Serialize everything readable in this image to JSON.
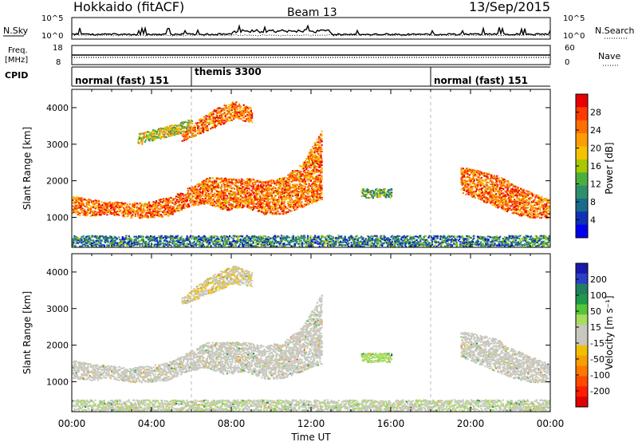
{
  "header": {
    "station": "Hokkaido (fitACF)",
    "beam": "Beam 13",
    "date": "13/Sep/2015"
  },
  "nsky_panel": {
    "left_label": "N.Sky",
    "right_label": "N.Search",
    "left_ticks": [
      "10^5",
      "10^0"
    ],
    "right_ticks": [
      "10^5",
      "10^0"
    ]
  },
  "freq_panel": {
    "left_label_1": "Freq.",
    "left_label_2": "[MHz]",
    "left_ticks": [
      "18",
      "8"
    ],
    "right_ticks": [
      "60",
      "0"
    ],
    "right_label": "Nave"
  },
  "cpid_panel": {
    "label": "CPID",
    "segments": [
      {
        "name": "normal (fast) 151",
        "start_hour": 0,
        "end_hour": 6
      },
      {
        "name": "themis 3300",
        "start_hour": 6,
        "end_hour": 18
      },
      {
        "name": "normal (fast) 151",
        "start_hour": 18,
        "end_hour": 24
      }
    ]
  },
  "x_axis": {
    "title": "Time UT",
    "ticks": [
      "00:00",
      "04:00",
      "08:00",
      "12:00",
      "16:00",
      "20:00",
      "00:00"
    ],
    "tick_hours": [
      0,
      4,
      8,
      12,
      16,
      20,
      24
    ]
  },
  "power_colorbar": {
    "title": "Power [dB]",
    "ticks": [
      "28",
      "24",
      "20",
      "16",
      "12",
      "8",
      "4"
    ],
    "colors": [
      "#e80000",
      "#ff3a00",
      "#ff7000",
      "#ff9d00",
      "#f5c200",
      "#a8c800",
      "#4cae40",
      "#2f8f6a",
      "#1a6a8a",
      "#1030b8",
      "#0000f0"
    ]
  },
  "velocity_colorbar": {
    "title": "Velocity [m s⁻¹]",
    "ticks": [
      "200",
      "100",
      "50",
      "15",
      "-15",
      "-50",
      "-100",
      "-200"
    ],
    "colors": [
      "#1a1aa8",
      "#2c3fc8",
      "#208060",
      "#1f9a4a",
      "#58c43a",
      "#a8dc60",
      "#c8c8c0",
      "#c8c8c0",
      "#f0c000",
      "#f5a000",
      "#ff7800",
      "#ff4a00",
      "#ff1e00",
      "#e00000"
    ]
  },
  "chart_data": [
    {
      "type": "heatmap",
      "name": "power",
      "ylabel": "Slant Range [km]",
      "xlabel": "",
      "ylim": [
        180,
        4500
      ],
      "xlim": [
        0,
        24
      ],
      "yticks": [
        1000,
        2000,
        3000,
        4000
      ],
      "colorbar_label": "Power [dB]",
      "bands": [
        {
          "t": [
            0,
            12.5
          ],
          "r_lo": [
            1100,
            1050,
            1100,
            1000,
            1000,
            1050,
            1300,
            1400,
            1200,
            1300,
            1100,
            1100,
            1300,
            1500
          ],
          "r_hi": [
            1600,
            1500,
            1450,
            1400,
            1450,
            1550,
            1800,
            2100,
            2100,
            2100,
            2000,
            2100,
            2500,
            3400
          ],
          "value": 24
        },
        {
          "t": [
            3.3,
            6.0
          ],
          "r_lo": [
            3000,
            3100,
            3200,
            3300,
            3400
          ],
          "r_hi": [
            3300,
            3400,
            3500,
            3600,
            3700
          ],
          "value": 16
        },
        {
          "t": [
            5.5,
            9.0
          ],
          "r_lo": [
            3100,
            3300,
            3500,
            3700,
            3600
          ],
          "r_hi": [
            3300,
            3700,
            4000,
            4200,
            4000
          ],
          "value": 24
        },
        {
          "t": [
            14.5,
            16.0
          ],
          "r_lo": [
            1550
          ],
          "r_hi": [
            1800
          ],
          "value": 12
        },
        {
          "t": [
            19.5,
            23.9
          ],
          "r_lo": [
            1700,
            1500,
            1300,
            1100,
            1000,
            1000
          ],
          "r_hi": [
            2400,
            2300,
            2200,
            1900,
            1700,
            1500
          ],
          "value": 24
        },
        {
          "t": [
            0,
            24
          ],
          "r_lo": [
            190
          ],
          "r_hi": [
            520
          ],
          "value": 8
        }
      ]
    },
    {
      "type": "heatmap",
      "name": "velocity",
      "ylabel": "Slant Range [km]",
      "xlabel": "Time UT",
      "ylim": [
        180,
        4500
      ],
      "xlim": [
        0,
        24
      ],
      "yticks": [
        1000,
        2000,
        3000,
        4000
      ],
      "colorbar_label": "Velocity [m s⁻¹]",
      "bands": [
        {
          "t": [
            0,
            12.5
          ],
          "r_lo": [
            1100,
            1050,
            1100,
            1000,
            1000,
            1050,
            1300,
            1400,
            1200,
            1300,
            1100,
            1100,
            1300,
            1500
          ],
          "r_hi": [
            1600,
            1500,
            1450,
            1400,
            1450,
            1550,
            1800,
            2100,
            2100,
            2100,
            2000,
            2100,
            2500,
            3400
          ],
          "value": 0
        },
        {
          "t": [
            5.5,
            9.0
          ],
          "r_lo": [
            3100,
            3300,
            3500,
            3700,
            3600
          ],
          "r_hi": [
            3300,
            3700,
            4000,
            4200,
            4000
          ],
          "value": -30
        },
        {
          "t": [
            14.5,
            16.0
          ],
          "r_lo": [
            1550
          ],
          "r_hi": [
            1800
          ],
          "value": 60
        },
        {
          "t": [
            19.5,
            23.9
          ],
          "r_lo": [
            1700,
            1500,
            1300,
            1100,
            1000,
            1000
          ],
          "r_hi": [
            2400,
            2300,
            2200,
            1900,
            1700,
            1500
          ],
          "value": 0
        },
        {
          "t": [
            0,
            24
          ],
          "r_lo": [
            190
          ],
          "r_hi": [
            520
          ],
          "value": 30
        }
      ]
    }
  ]
}
